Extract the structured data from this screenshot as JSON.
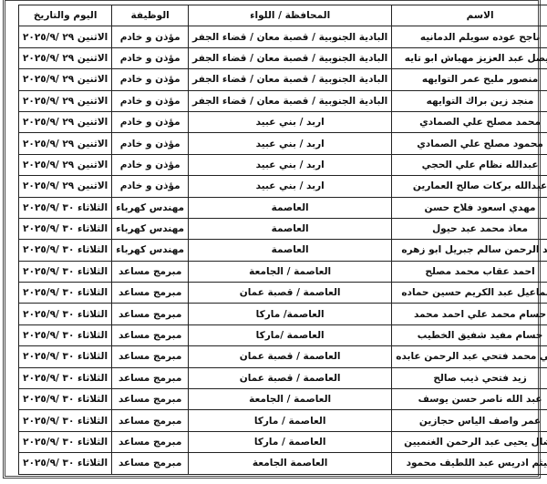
{
  "headers": {
    "name": "الاسم",
    "governorate": "المحافظة / اللواء",
    "job": "الوظيفة",
    "date": "اليوم والتاريخ"
  },
  "rows": [
    {
      "name": "ناجح عوده سويلم الدمانيه",
      "governorate": "البادية الجنوبية / قصبة معان / قضاء الجفر",
      "job": "مؤذن و خادم",
      "date": "الاثنين ٢٩ /٢٠٢٥/٩"
    },
    {
      "name": "فيصل عبد العزيز مهباش ابو تايه",
      "governorate": "البادية الجنوبية / قصبة معان / قضاء الجفر",
      "job": "مؤذن و خادم",
      "date": "الاثنين ٢٩ /٢٠٢٥/٩"
    },
    {
      "name": "منصور مليح عمر التوايهه",
      "governorate": "البادية الجنوبية / قصبة معان / قضاء الجفر",
      "job": "مؤذن و خادم",
      "date": "الاثنين ٢٩ /٢٠٢٥/٩"
    },
    {
      "name": "منجد زين براك التوايهه",
      "governorate": "البادية الجنوبية / قصبة معان / قضاء الجفر",
      "job": "مؤذن و خادم",
      "date": "الاثنين ٢٩ /٢٠٢٥/٩"
    },
    {
      "name": "محمد مصلح علي الصمادي",
      "governorate": "اربد / بني عبيد",
      "job": "مؤذن و خادم",
      "date": "الاثنين ٢٩ /٢٠٢٥/٩"
    },
    {
      "name": "محمود مصلح علي الصمادي",
      "governorate": "اربد / بني عبيد",
      "job": "مؤذن و خادم",
      "date": "الاثنين ٢٩ /٢٠٢٥/٩"
    },
    {
      "name": "عبدالله نظام علي الحجي",
      "governorate": "اربد / بني عبيد",
      "job": "مؤذن و خادم",
      "date": "الاثنين ٢٩ /٢٠٢٥/٩"
    },
    {
      "name": "عبدالله بركات صالح العمارين",
      "governorate": "اربد / بني عبيد",
      "job": "مؤذن و خادم",
      "date": "الاثنين ٢٩ /٢٠٢٥/٩"
    },
    {
      "name": "مهدي اسعود فلاح حسن",
      "governorate": "العاصمة",
      "job": "مهندس كهرباء",
      "date": "الثلاثاء ٣٠ /٢٠٢٥/٩"
    },
    {
      "name": "معاذ محمد عبد حيول",
      "governorate": "العاصمة",
      "job": "مهندس كهرباء",
      "date": "الثلاثاء ٣٠ /٢٠٢٥/٩"
    },
    {
      "name": "عبد الرحمن سالم جبريل ابو زهره",
      "governorate": "العاصمة",
      "job": "مهندس كهرباء",
      "date": "الثلاثاء ٣٠ /٢٠٢٥/٩"
    },
    {
      "name": "احمد عقاب محمد مصلح",
      "governorate": "العاصمة / الجامعة",
      "job": "مبرمج مساعد",
      "date": "الثلاثاء ٣٠ /٢٠٢٥/٩"
    },
    {
      "name": "اسماعيل عبد الكريم حسين حماده",
      "governorate": "العاصمة / قصبة عمان",
      "job": "مبرمج مساعد",
      "date": "الثلاثاء ٣٠ /٢٠٢٥/٩"
    },
    {
      "name": "حسام محمد علي احمد محمد",
      "governorate": "العاصمة/ ماركا",
      "job": "مبرمج مساعد",
      "date": "الثلاثاء ٣٠ /٢٠٢٥/٩"
    },
    {
      "name": "حسام مفيد شفيق الخطيب",
      "governorate": "العاصمة /ماركا",
      "job": "مبرمج مساعد",
      "date": "الثلاثاء ٣٠ /٢٠٢٥/٩"
    },
    {
      "name": "رامي محمد فتحي عبد الرحمن عابده",
      "governorate": "العاصمة / قصبة عمان",
      "job": "مبرمج مساعد",
      "date": "الثلاثاء ٣٠ /٢٠٢٥/٩"
    },
    {
      "name": "زيد فتحي ذيب صالح",
      "governorate": "العاصمة / قصبة عمان",
      "job": "مبرمج مساعد",
      "date": "الثلاثاء ٣٠ /٢٠٢٥/٩"
    },
    {
      "name": "عبد الله ناصر حسن يوسف",
      "governorate": "العاصمة / الجامعة",
      "job": "مبرمج مساعد",
      "date": "الثلاثاء ٣٠ /٢٠٢٥/٩"
    },
    {
      "name": "عمر واصف الياس حجازين",
      "governorate": "العاصمة / ماركا",
      "job": "مبرمج مساعد",
      "date": "الثلاثاء ٣٠ /٢٠٢٥/٩"
    },
    {
      "name": "نضال يحيى عبد الرحمن الغنميين",
      "governorate": "العاصمة / ماركا",
      "job": "مبرمج مساعد",
      "date": "الثلاثاء ٣٠ /٢٠٢٥/٩"
    },
    {
      "name": "هيثم ادريس عبد اللطيف محمود",
      "governorate": "العاصمة الجامعة",
      "job": "مبرمج مساعد",
      "date": "الثلاثاء ٣٠ /٢٠٢٥/٩"
    }
  ]
}
